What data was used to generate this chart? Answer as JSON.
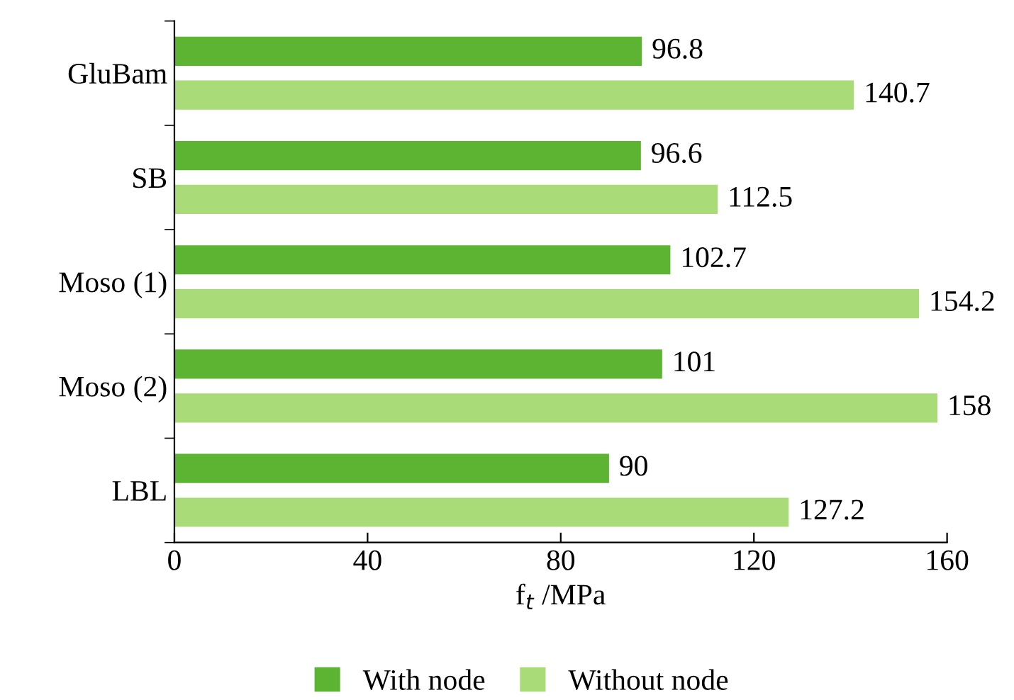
{
  "chart_data": {
    "type": "bar",
    "orientation": "horizontal",
    "xlabel": "f$_{t}$ /MPa",
    "categories": [
      "GluBam",
      "SB",
      "Moso (1)",
      "Moso (2)",
      "LBL"
    ],
    "series": [
      {
        "name": "With node",
        "color": "#5db432",
        "values": [
          96.8,
          96.6,
          102.7,
          101,
          90
        ]
      },
      {
        "name": "Without node",
        "color": "#a9db78",
        "values": [
          140.7,
          112.5,
          154.2,
          158,
          127.2
        ]
      }
    ],
    "xlim": [
      0,
      160
    ],
    "xticks": [
      0,
      40,
      80,
      120,
      160
    ],
    "grid": false,
    "legend": "bottom",
    "data_labels": true
  }
}
